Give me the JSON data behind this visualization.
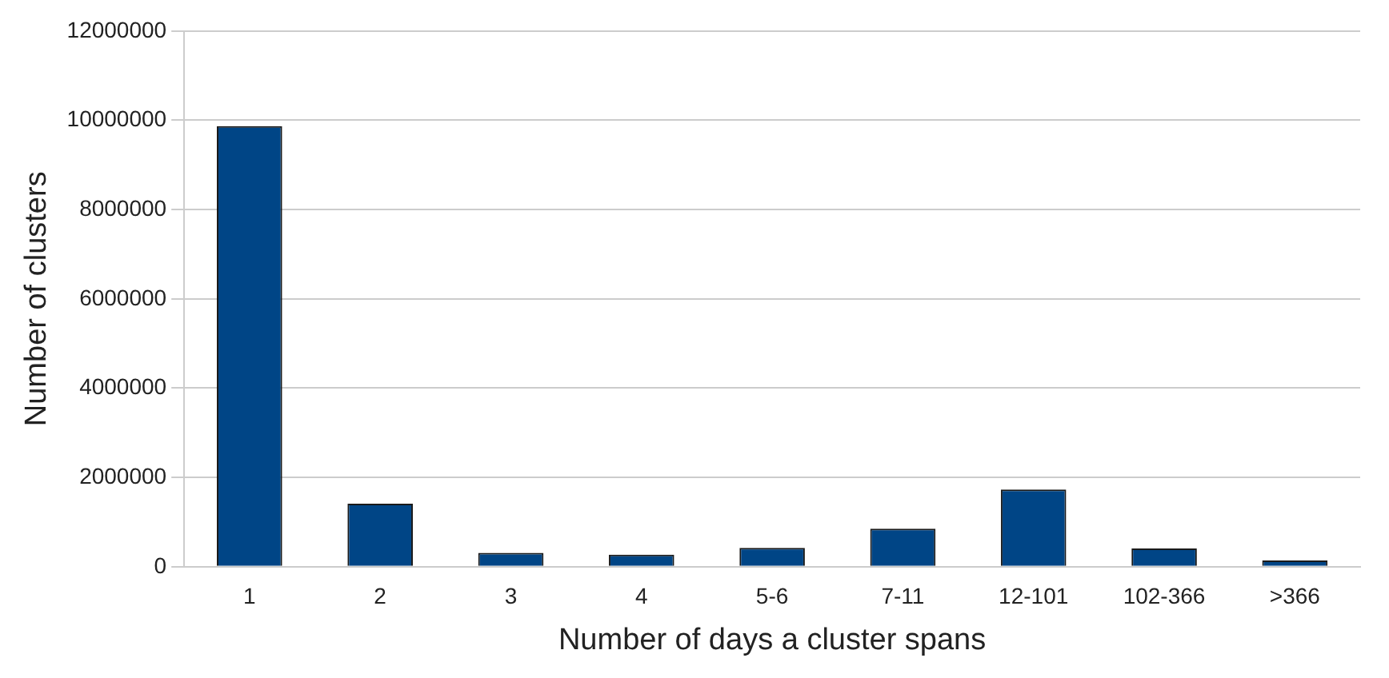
{
  "chart_data": {
    "type": "bar",
    "xlabel": "Number of days a cluster spans",
    "ylabel": "Number of clusters",
    "categories": [
      "1",
      "2",
      "3",
      "4",
      "5-6",
      "7-11",
      "12-101",
      "102-366",
      ">366"
    ],
    "values": [
      9870000,
      1410000,
      310000,
      270000,
      420000,
      850000,
      1730000,
      410000,
      140000
    ],
    "color": "#004586",
    "ylim": [
      0,
      12000000
    ],
    "yticks": [
      0,
      2000000,
      4000000,
      6000000,
      8000000,
      10000000,
      12000000
    ],
    "grid": "y",
    "legend": false
  }
}
